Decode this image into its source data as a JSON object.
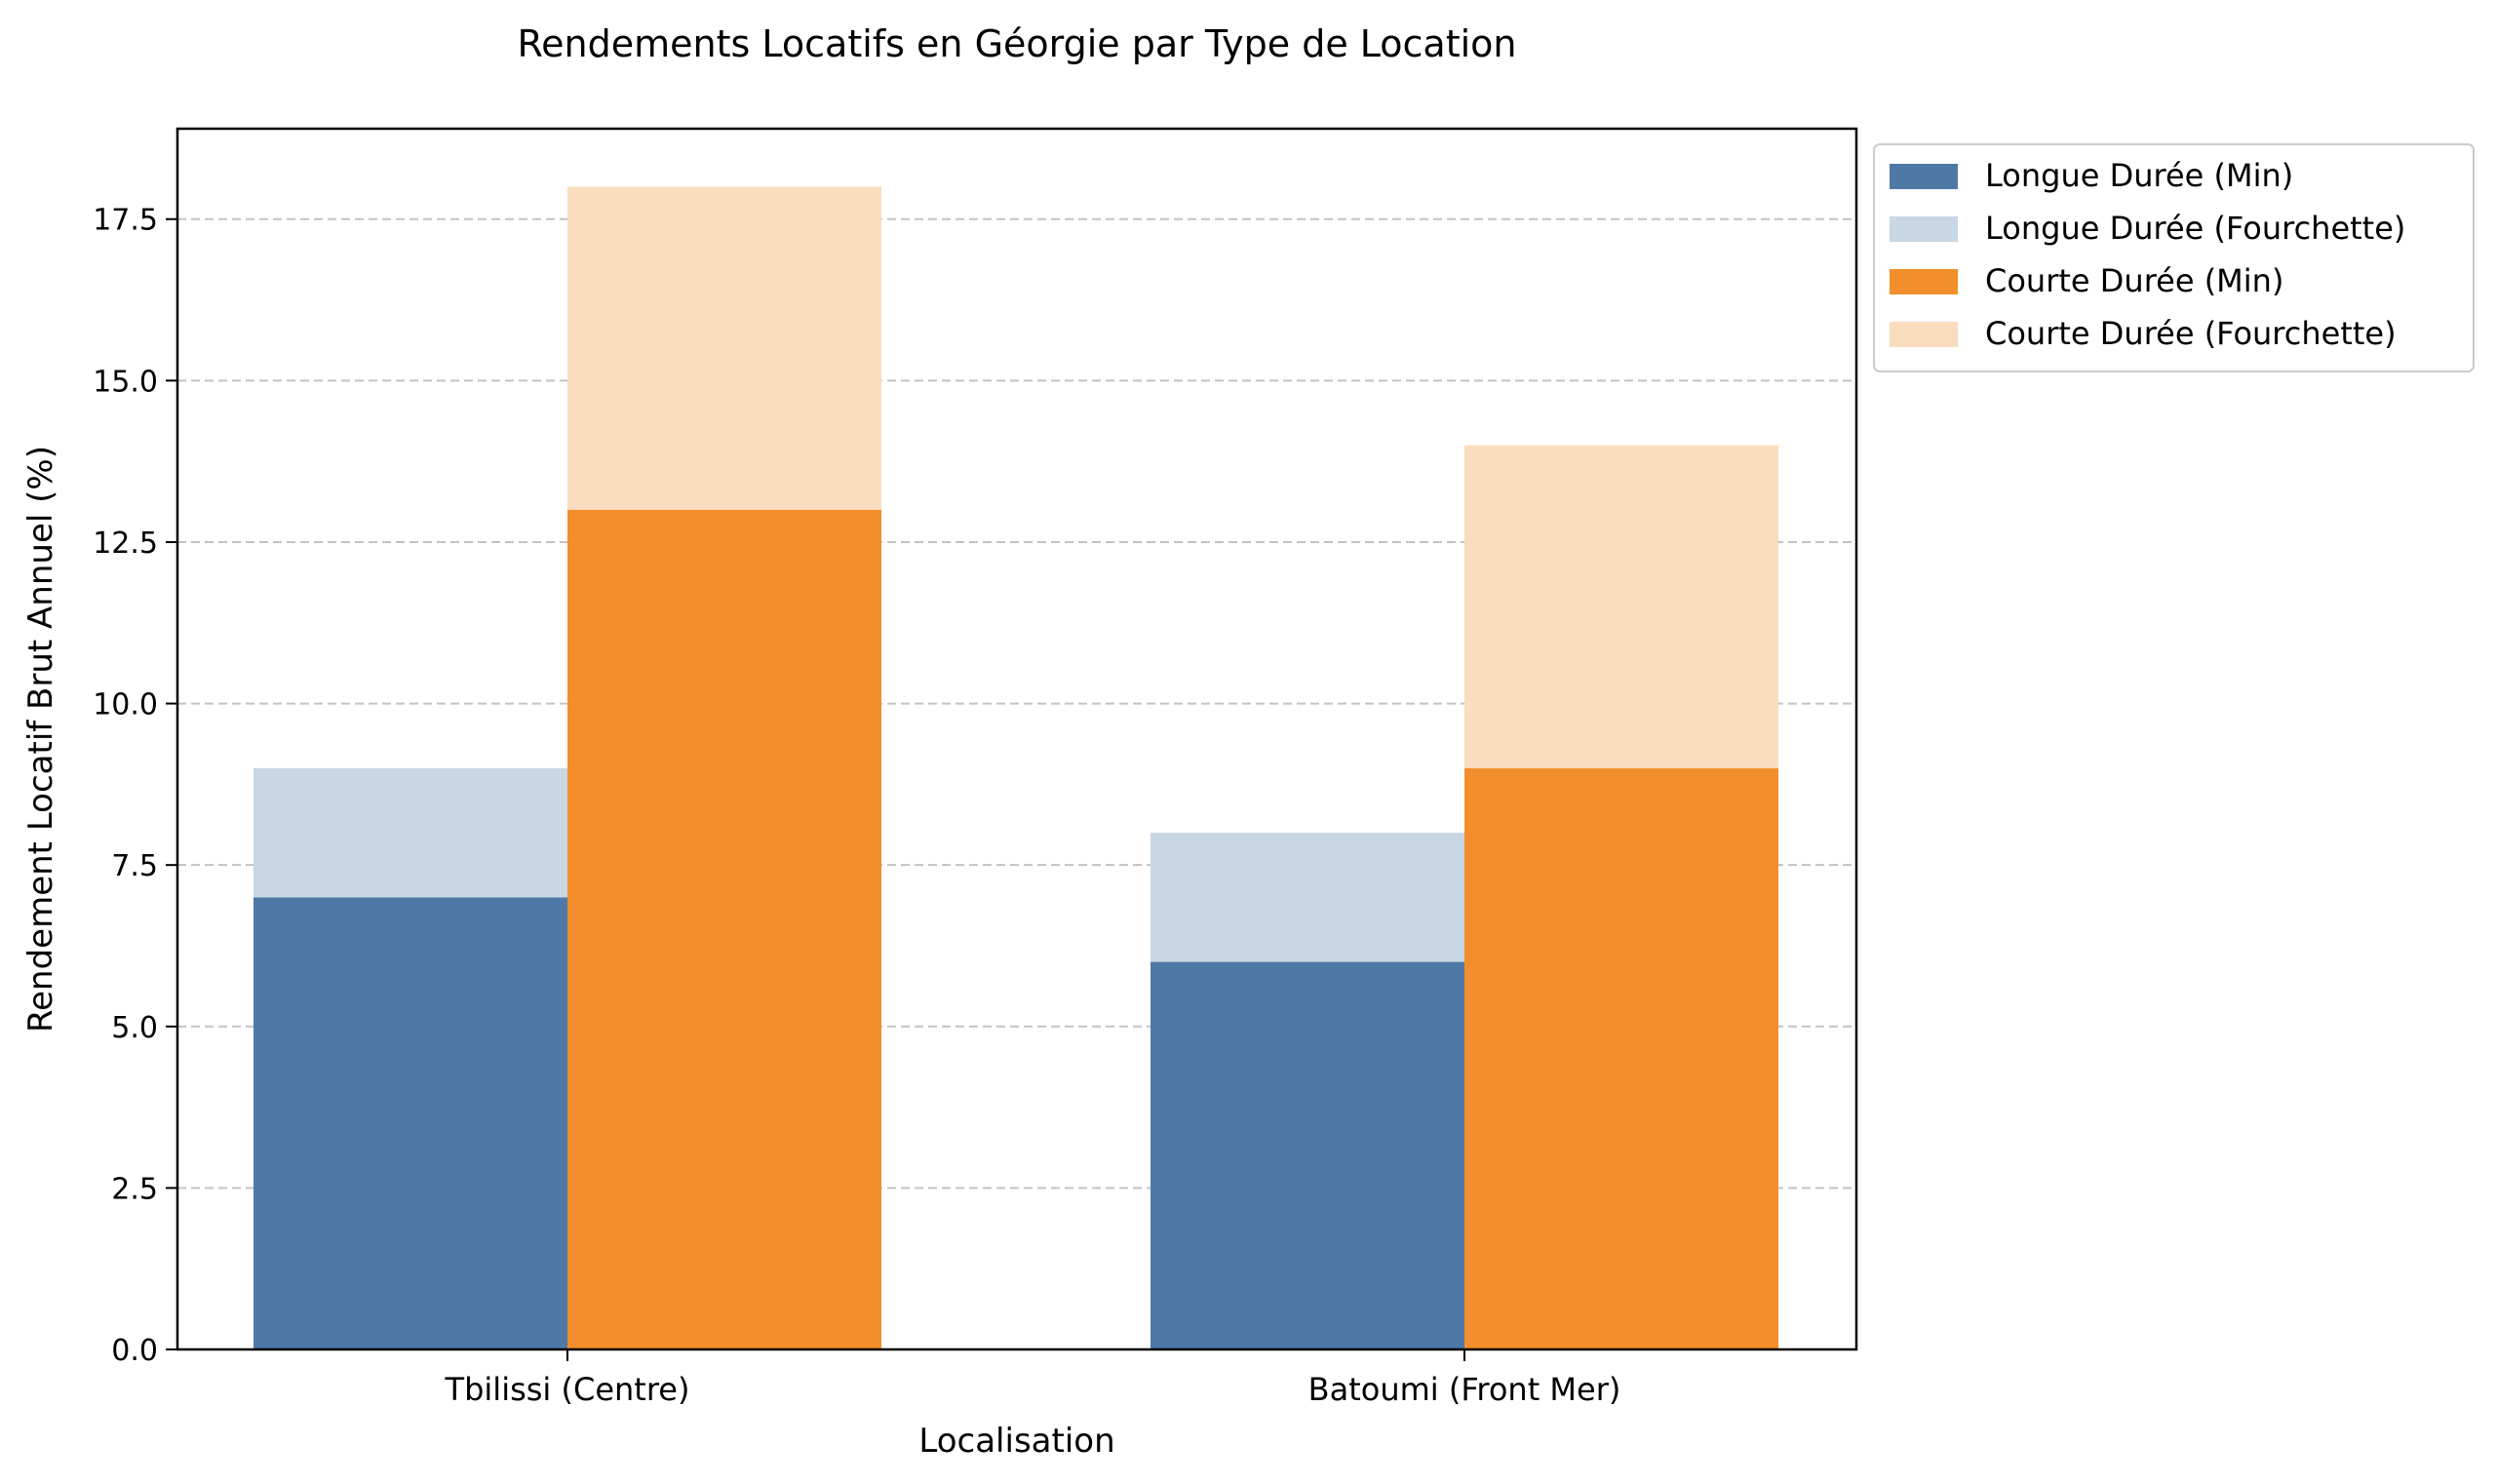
{
  "chart_data": {
    "type": "bar",
    "title": "Rendements Locatifs en Géorgie par Type de Location",
    "xlabel": "Localisation",
    "ylabel": "Rendement Locatif Brut Annuel (%)",
    "categories": [
      "Tbilissi (Centre)",
      "Batoumi (Front Mer)"
    ],
    "ylim": [
      0,
      18.9
    ],
    "yticks": [
      0.0,
      2.5,
      5.0,
      7.5,
      10.0,
      12.5,
      15.0,
      17.5
    ],
    "ytick_labels": [
      "0.0",
      "2.5",
      "5.0",
      "7.5",
      "10.0",
      "12.5",
      "15.0",
      "17.5"
    ],
    "grid": "horizontal-dashed",
    "legend_position": "outside-top-right",
    "groups": [
      {
        "name": "Longue Durée",
        "min": [
          7,
          6
        ],
        "max": [
          9,
          8
        ],
        "min_label": "Longue Durée (Min)",
        "range_label": "Longue Durée (Fourchette)",
        "min_color": "#4e79a7",
        "range_color": "#c9d6e3"
      },
      {
        "name": "Courte Durée",
        "min": [
          13,
          9
        ],
        "max": [
          18,
          14
        ],
        "min_label": "Courte Durée (Min)",
        "range_label": "Courte Durée (Fourchette)",
        "min_color": "#f28e2b",
        "range_color": "#fadcbf"
      }
    ]
  }
}
